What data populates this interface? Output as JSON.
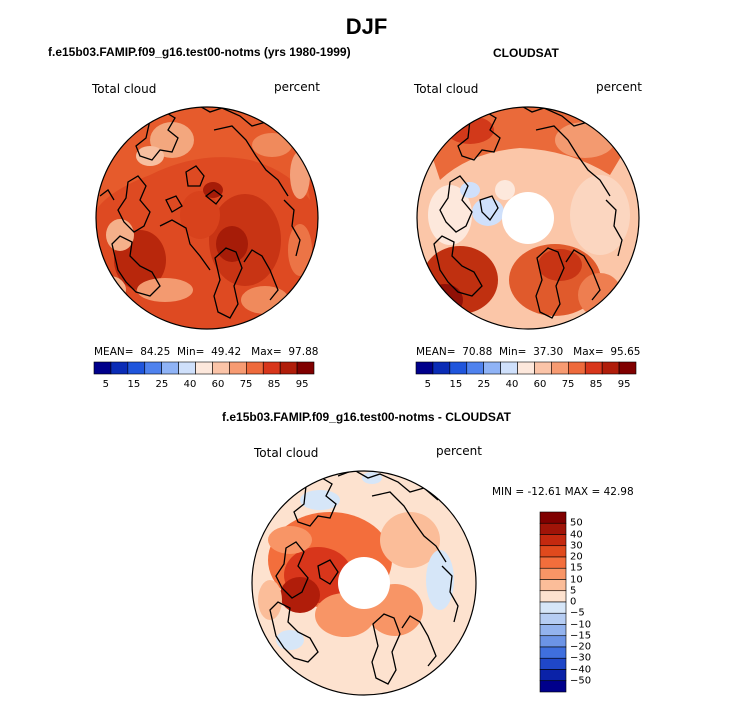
{
  "page": {
    "title": "DJF"
  },
  "panels": [
    {
      "id": "model",
      "title": "f.e15b03.FAMIP.f09_g16.test00-notms (yrs 1980-1999)",
      "variable": "Total cloud",
      "units": "percent",
      "stats": {
        "mean_label": "MEAN=",
        "mean": "84.25",
        "min_label": "Min=",
        "min": "49.42",
        "max_label": "Max=",
        "max": "97.88"
      },
      "colorbar_ticks": [
        "5",
        "15",
        "25",
        "40",
        "60",
        "75",
        "85",
        "95"
      ]
    },
    {
      "id": "obs",
      "title": "CLOUDSAT",
      "variable": "Total cloud",
      "units": "percent",
      "stats": {
        "mean_label": "MEAN=",
        "mean": "70.88",
        "min_label": "Min=",
        "min": "37.30",
        "max_label": "Max=",
        "max": "95.65"
      },
      "colorbar_ticks": [
        "5",
        "15",
        "25",
        "40",
        "60",
        "75",
        "85",
        "95"
      ]
    },
    {
      "id": "diff",
      "title": "f.e15b03.FAMIP.f09_g16.test00-notms - CLOUDSAT",
      "variable": "Total cloud",
      "units": "percent",
      "stats_text": "MIN = -12.61 MAX =  42.98",
      "colorbar_levels": [
        "50",
        "40",
        "30",
        "20",
        "15",
        "10",
        "5",
        "0",
        "−5",
        "−10",
        "−15",
        "−20",
        "−30",
        "−40",
        "−50"
      ]
    }
  ],
  "colors": {
    "abs_scale": [
      "#00008b",
      "#0a2cb6",
      "#1f55dc",
      "#4f82ee",
      "#8fb3f6",
      "#cfe0fb",
      "#fde8dc",
      "#fbc4a8",
      "#f79b72",
      "#ee6a3c",
      "#d8361b",
      "#b01d0a",
      "#800000"
    ],
    "diff_scale": [
      "#800000",
      "#a01408",
      "#c4290f",
      "#e04a1d",
      "#f36e3c",
      "#f89566",
      "#fbbd99",
      "#fde2cf",
      "#d6e6f8",
      "#b6cdf3",
      "#93b3ee",
      "#6c94e6",
      "#3f6fde",
      "#1f47c8",
      "#0a22a8",
      "#00008b"
    ],
    "land_outline": "#000000"
  }
}
